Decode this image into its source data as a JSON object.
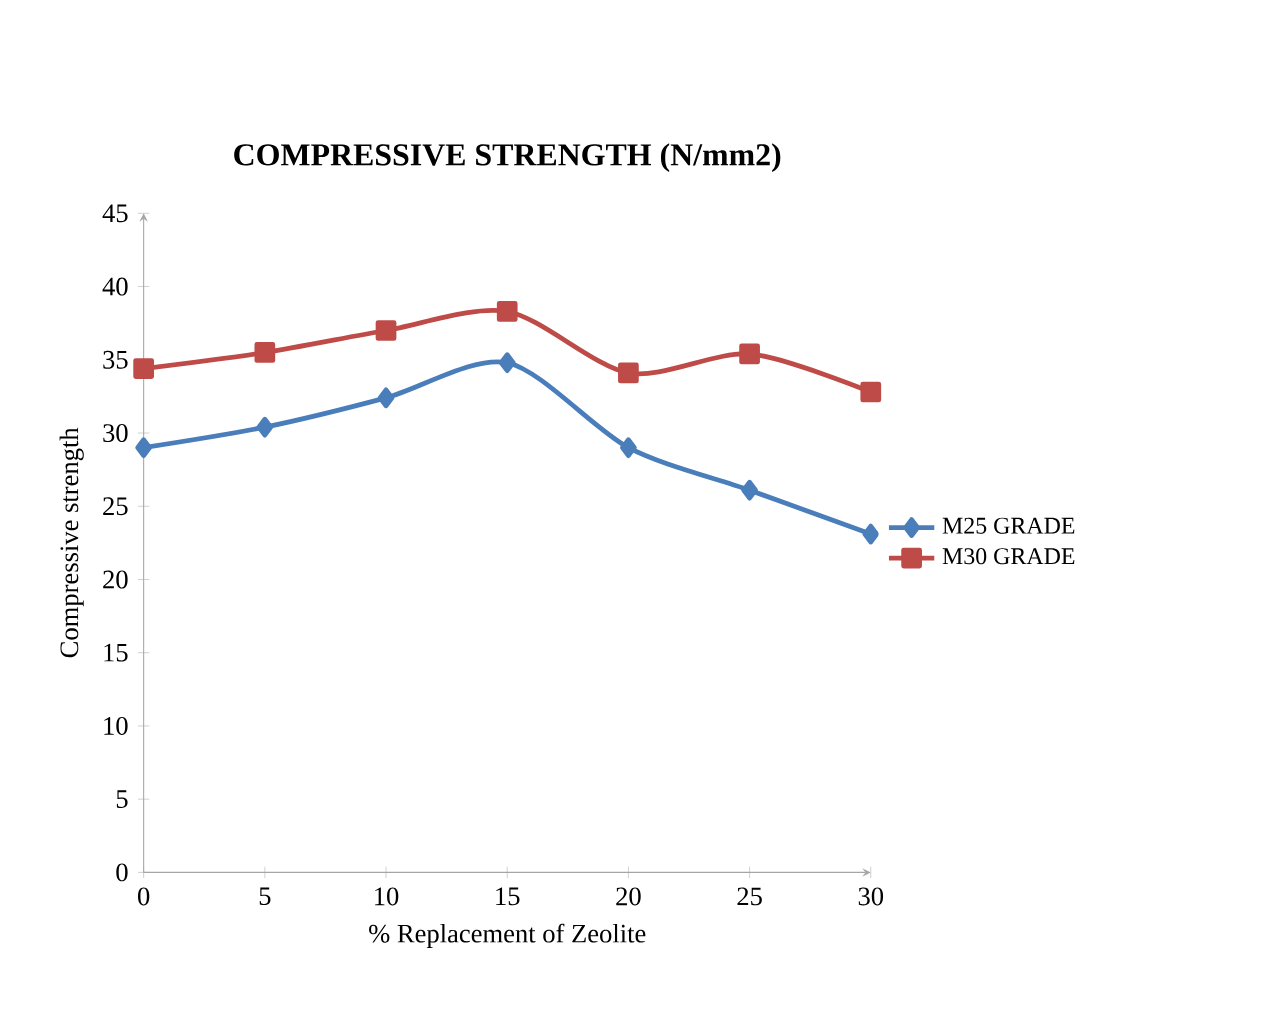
{
  "chart_data": {
    "type": "line",
    "title": "COMPRESSIVE STRENGTH (N/mm2)",
    "xlabel": "% Replacement of Zeolite",
    "ylabel": "Compressive strength",
    "x": [
      0,
      5,
      10,
      15,
      20,
      25,
      30
    ],
    "series": [
      {
        "name": "M25 GRADE",
        "color": "#4a7ebb",
        "marker": "diamond",
        "values": [
          29.0,
          30.4,
          32.4,
          34.8,
          29.0,
          26.1,
          23.1
        ]
      },
      {
        "name": "M30 GRADE",
        "color": "#be4b48",
        "marker": "square",
        "values": [
          34.4,
          35.5,
          37.0,
          38.3,
          34.1,
          35.4,
          32.8
        ]
      }
    ],
    "xlim": [
      0,
      30
    ],
    "xticks": [
      0,
      5,
      10,
      15,
      20,
      25,
      30
    ],
    "ylim": [
      0,
      45
    ],
    "yticks": [
      0,
      5,
      10,
      15,
      20,
      25,
      30,
      35,
      40,
      45
    ],
    "legend": "right",
    "grid": false
  }
}
